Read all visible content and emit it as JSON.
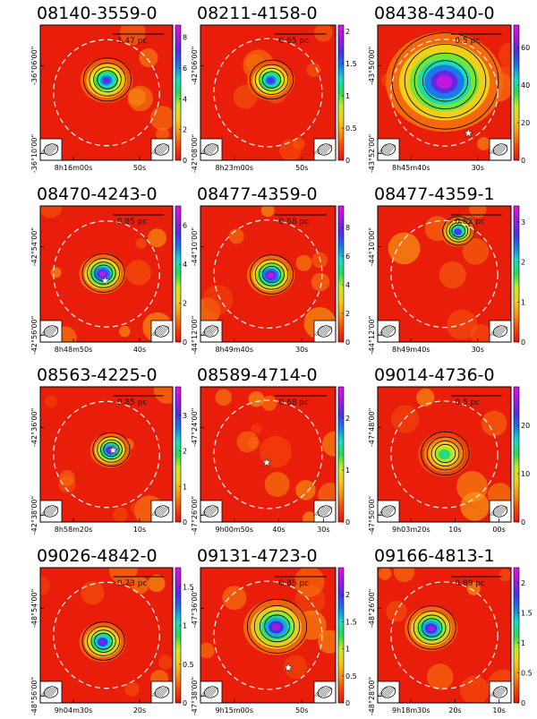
{
  "chart_data": [
    {
      "type": "heatmap",
      "title": "08140-3559-0",
      "scale_bar": "1.47 pc",
      "x_ticks": [
        "8h16m00s",
        "50s"
      ],
      "y_ticks": [
        "-36°06'00\"",
        "-36°10'00\""
      ],
      "colorbar": {
        "ticks": [
          "0",
          "2",
          "4",
          "6",
          "8"
        ],
        "min": 0,
        "max": 8.8
      },
      "source": {
        "x": 0.5,
        "y": 0.41,
        "peak": 0.85,
        "size": 0.09
      },
      "star": null
    },
    {
      "type": "heatmap",
      "title": "08211-4158-0",
      "scale_bar": "0.65 pc",
      "x_ticks": [
        "8h23m00s",
        "50s"
      ],
      "y_ticks": [
        "-42°06'00\"",
        "-42°08'00\""
      ],
      "colorbar": {
        "ticks": [
          "0",
          "0.5",
          "1",
          "1.5",
          "2"
        ],
        "min": 0,
        "max": 2.1
      },
      "source": {
        "x": 0.52,
        "y": 0.41,
        "peak": 0.85,
        "size": 0.08
      },
      "star": null
    },
    {
      "type": "heatmap",
      "title": "08438-4340-0",
      "scale_bar": "0.5 pc",
      "x_ticks": [
        "8h45m40s",
        "30s"
      ],
      "y_ticks": [
        "-43°50'00\"",
        "-43°52'00\""
      ],
      "colorbar": {
        "ticks": [
          "0",
          "20",
          "40",
          "60"
        ],
        "min": 0,
        "max": 72
      },
      "source": {
        "x": 0.5,
        "y": 0.42,
        "peak": 1.0,
        "size": 0.2
      },
      "star": {
        "x": 0.68,
        "y": 0.8
      }
    },
    {
      "type": "heatmap",
      "title": "08470-4243-0",
      "scale_bar": "0.85 pc",
      "x_ticks": [
        "8h48m50s",
        "40s"
      ],
      "y_ticks": [
        "-42°54'00\"",
        "-42°56'00\""
      ],
      "colorbar": {
        "ticks": [
          "0",
          "2",
          "4",
          "6"
        ],
        "min": 0,
        "max": 7
      },
      "source": {
        "x": 0.47,
        "y": 0.5,
        "peak": 1.0,
        "size": 0.08
      },
      "star": {
        "x": 0.49,
        "y": 0.55
      }
    },
    {
      "type": "heatmap",
      "title": "08477-4359-0",
      "scale_bar": "0.68 pc",
      "x_ticks": [
        "8h49m40s",
        "30s"
      ],
      "y_ticks": [
        "-44°10'00\"",
        "-44°12'00\""
      ],
      "colorbar": {
        "ticks": [
          "0",
          "2",
          "4",
          "6",
          "8"
        ],
        "min": 0,
        "max": 9.5
      },
      "source": {
        "x": 0.52,
        "y": 0.51,
        "peak": 1.0,
        "size": 0.08
      },
      "star": null
    },
    {
      "type": "heatmap",
      "title": "08477-4359-1",
      "scale_bar": "0.62 pc",
      "x_ticks": [
        "8h49m40s",
        "30s"
      ],
      "y_ticks": [
        "-44°10'00\"",
        "-44°12'00\""
      ],
      "colorbar": {
        "ticks": [
          "0",
          "1",
          "2",
          "3"
        ],
        "min": 0,
        "max": 3.4
      },
      "source": {
        "x": 0.6,
        "y": 0.19,
        "peak": 0.9,
        "size": 0.06
      },
      "star": null
    },
    {
      "type": "heatmap",
      "title": "08563-4225-0",
      "scale_bar": "0.85 pc",
      "x_ticks": [
        "8h58m20s",
        "10s"
      ],
      "y_ticks": [
        "-42°36'00\"",
        "-42°38'00\""
      ],
      "colorbar": {
        "ticks": [
          "0",
          "1",
          "2",
          "3"
        ],
        "min": 0,
        "max": 3.8
      },
      "source": {
        "x": 0.53,
        "y": 0.47,
        "peak": 0.95,
        "size": 0.07
      },
      "star": {
        "x": 0.55,
        "y": 0.47
      }
    },
    {
      "type": "heatmap",
      "title": "08589-4714-0",
      "scale_bar": "0.68 pc",
      "x_ticks": [
        "9h00m50s",
        "40s",
        "30s"
      ],
      "y_ticks": [
        "-47°24'00\"",
        "-47°26'00\""
      ],
      "colorbar": {
        "ticks": [
          "0",
          "1",
          "2"
        ],
        "min": 0,
        "max": 2.6
      },
      "source": null,
      "star": {
        "x": 0.49,
        "y": 0.56
      }
    },
    {
      "type": "heatmap",
      "title": "09014-4736-0",
      "scale_bar": "0.5 pc",
      "x_ticks": [
        "9h03m20s",
        "10s",
        "00s"
      ],
      "y_ticks": [
        "-47°48'00\"",
        "-47°50'00\""
      ],
      "colorbar": {
        "ticks": [
          "0",
          "10",
          "20"
        ],
        "min": 0,
        "max": 28
      },
      "source": {
        "x": 0.5,
        "y": 0.5,
        "peak": 0.6,
        "size": 0.09
      },
      "star": null
    },
    {
      "type": "heatmap",
      "title": "09026-4842-0",
      "scale_bar": "0.73 pc",
      "x_ticks": [
        "9h04m30s",
        "20s"
      ],
      "y_ticks": [
        "-48°54'00\"",
        "-48°56'00\""
      ],
      "colorbar": {
        "ticks": [
          "0",
          "0.5",
          "1",
          "1.5"
        ],
        "min": 0,
        "max": 1.75
      },
      "source": {
        "x": 0.47,
        "y": 0.55,
        "peak": 0.9,
        "size": 0.08
      },
      "star": null
    },
    {
      "type": "heatmap",
      "title": "09131-4723-0",
      "scale_bar": "0.85 pc",
      "x_ticks": [
        "9h15m00s",
        "50s"
      ],
      "y_ticks": [
        "-47°36'00\"",
        "-47°38'00\""
      ],
      "colorbar": {
        "ticks": [
          "0",
          "0.5",
          "1",
          "1.5",
          "2"
        ],
        "min": 0,
        "max": 2.5
      },
      "source": {
        "x": 0.56,
        "y": 0.44,
        "peak": 0.95,
        "size": 0.11
      },
      "star": {
        "x": 0.65,
        "y": 0.74
      }
    },
    {
      "type": "heatmap",
      "title": "09166-4813-1",
      "scale_bar": "0.89 pc",
      "x_ticks": [
        "9h18m30s",
        "20s",
        "10s"
      ],
      "y_ticks": [
        "-48°26'00\"",
        "-48°28'00\""
      ],
      "colorbar": {
        "ticks": [
          "0",
          "0.5",
          "1",
          "1.5",
          "2"
        ],
        "min": 0,
        "max": 2.25
      },
      "source": {
        "x": 0.4,
        "y": 0.45,
        "peak": 0.95,
        "size": 0.09
      },
      "star": null
    }
  ]
}
